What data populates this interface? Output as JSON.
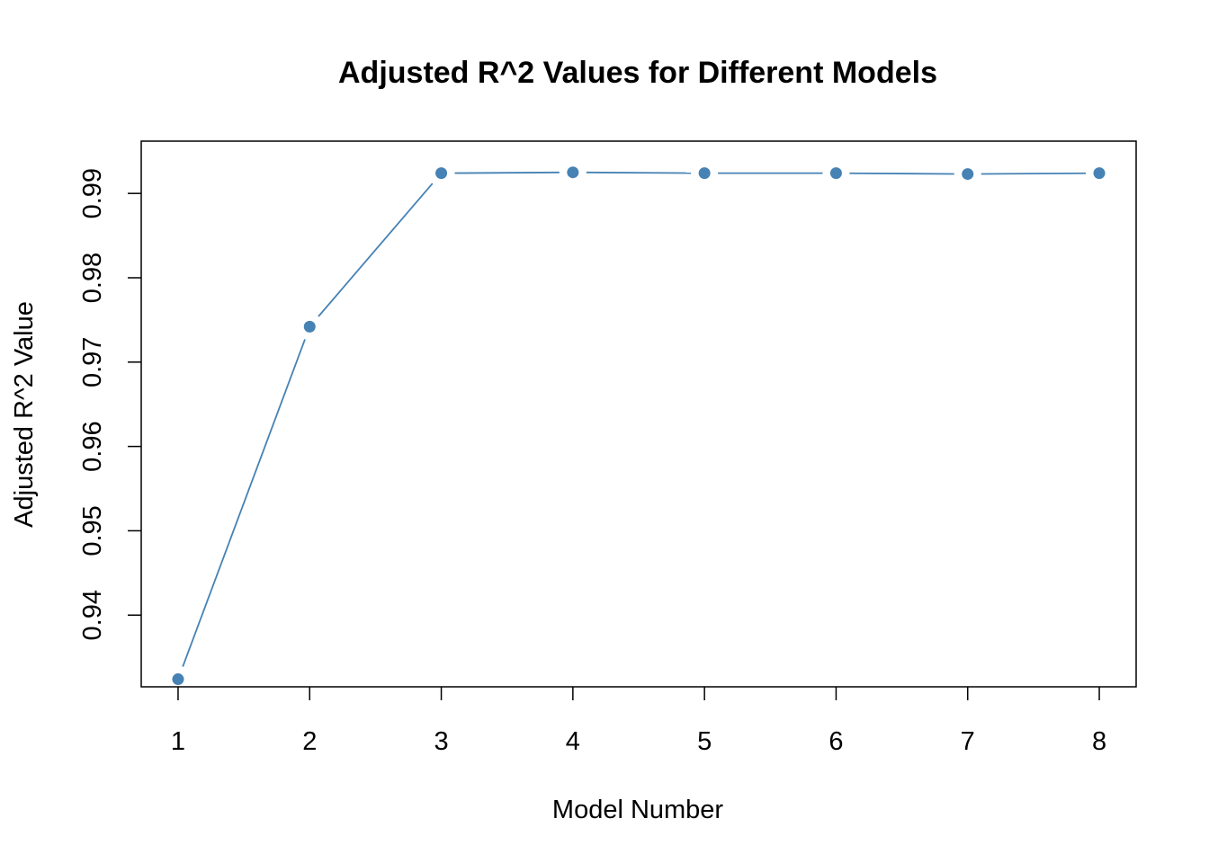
{
  "chart_data": {
    "type": "line",
    "title": "Adjusted R^2 Values for Different Models",
    "xlabel": "Model Number",
    "ylabel": "Adjusted R^2 Value",
    "x": [
      1,
      2,
      3,
      4,
      5,
      6,
      7,
      8
    ],
    "xticks": [
      "1",
      "2",
      "3",
      "4",
      "5",
      "6",
      "7",
      "8"
    ],
    "yticks": [
      "0.94",
      "0.95",
      "0.96",
      "0.97",
      "0.98",
      "0.99"
    ],
    "ytick_values": [
      0.94,
      0.95,
      0.96,
      0.97,
      0.98,
      0.99
    ],
    "xlim": [
      0.72,
      8.28
    ],
    "ylim": [
      0.9315,
      0.9962
    ],
    "series": [
      {
        "values": [
          0.9324,
          0.9742,
          0.9924,
          0.9925,
          0.9924,
          0.9924,
          0.9923,
          0.9924
        ],
        "color": "#4682B4"
      }
    ],
    "marker": "filled-circle",
    "grid": false,
    "legend": "none"
  }
}
